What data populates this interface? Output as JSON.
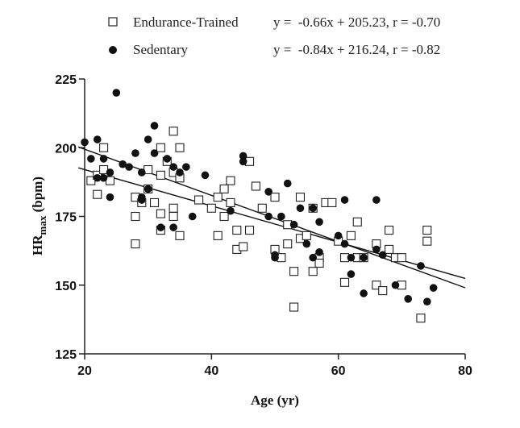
{
  "chart_data": {
    "type": "scatter",
    "xlabel": "Age (yr)",
    "ylabel_main": "HR",
    "ylabel_sub": "max",
    "ylabel_unit": " (bpm)",
    "xlim": [
      20,
      80
    ],
    "ylim": [
      125,
      225
    ],
    "xticks": [
      20,
      40,
      60,
      80
    ],
    "yticks": [
      125,
      150,
      175,
      200,
      225
    ],
    "grid": false,
    "legend_position": "top",
    "series": [
      {
        "name": "Endurance-Trained",
        "marker": "open-square",
        "equation": "y =  -0.66x + 205.23, r = -0.70",
        "fit": {
          "slope": -0.66,
          "intercept": 205.23,
          "x_range": [
            19,
            80
          ]
        },
        "points": [
          [
            21,
            188
          ],
          [
            22,
            183
          ],
          [
            22,
            190
          ],
          [
            23,
            192
          ],
          [
            23,
            200
          ],
          [
            24,
            188
          ],
          [
            28,
            175
          ],
          [
            28,
            165
          ],
          [
            28,
            182
          ],
          [
            29,
            180
          ],
          [
            30,
            192
          ],
          [
            30,
            185
          ],
          [
            31,
            180
          ],
          [
            32,
            200
          ],
          [
            32,
            190
          ],
          [
            32,
            176
          ],
          [
            32,
            170
          ],
          [
            33,
            195
          ],
          [
            34,
            206
          ],
          [
            34,
            191
          ],
          [
            34,
            178
          ],
          [
            34,
            175
          ],
          [
            35,
            200
          ],
          [
            35,
            189
          ],
          [
            35,
            168
          ],
          [
            38,
            181
          ],
          [
            40,
            178
          ],
          [
            41,
            182
          ],
          [
            41,
            168
          ],
          [
            42,
            185
          ],
          [
            42,
            175
          ],
          [
            43,
            188
          ],
          [
            43,
            180
          ],
          [
            44,
            170
          ],
          [
            44,
            163
          ],
          [
            45,
            164
          ],
          [
            46,
            195
          ],
          [
            46,
            170
          ],
          [
            47,
            186
          ],
          [
            48,
            178
          ],
          [
            50,
            182
          ],
          [
            50,
            163
          ],
          [
            51,
            160
          ],
          [
            52,
            172
          ],
          [
            52,
            165
          ],
          [
            53,
            155
          ],
          [
            53,
            142
          ],
          [
            54,
            182
          ],
          [
            54,
            167
          ],
          [
            55,
            168
          ],
          [
            56,
            178
          ],
          [
            56,
            155
          ],
          [
            57,
            160
          ],
          [
            57,
            158
          ],
          [
            58,
            180
          ],
          [
            59,
            180
          ],
          [
            60,
            166
          ],
          [
            61,
            160
          ],
          [
            61,
            151
          ],
          [
            62,
            168
          ],
          [
            63,
            173
          ],
          [
            63,
            160
          ],
          [
            64,
            160
          ],
          [
            66,
            165
          ],
          [
            66,
            150
          ],
          [
            67,
            148
          ],
          [
            68,
            170
          ],
          [
            68,
            163
          ],
          [
            69,
            160
          ],
          [
            70,
            160
          ],
          [
            70,
            150
          ],
          [
            73,
            138
          ],
          [
            74,
            170
          ],
          [
            74,
            166
          ]
        ]
      },
      {
        "name": "Sedentary",
        "marker": "filled-circle",
        "equation": "y =  -0.84x + 216.24, r = -0.82",
        "fit": {
          "slope": -0.84,
          "intercept": 216.24,
          "x_range": [
            19,
            80
          ]
        },
        "points": [
          [
            20,
            202
          ],
          [
            21,
            196
          ],
          [
            22,
            203
          ],
          [
            22,
            189
          ],
          [
            23,
            196
          ],
          [
            23,
            189
          ],
          [
            24,
            191
          ],
          [
            24,
            182
          ],
          [
            25,
            220
          ],
          [
            26,
            194
          ],
          [
            27,
            193
          ],
          [
            28,
            198
          ],
          [
            29,
            182
          ],
          [
            29,
            181
          ],
          [
            29,
            191
          ],
          [
            30,
            203
          ],
          [
            30,
            185
          ],
          [
            31,
            208
          ],
          [
            31,
            198
          ],
          [
            32,
            171
          ],
          [
            33,
            196
          ],
          [
            34,
            193
          ],
          [
            34,
            171
          ],
          [
            35,
            191
          ],
          [
            36,
            193
          ],
          [
            37,
            175
          ],
          [
            39,
            190
          ],
          [
            43,
            177
          ],
          [
            45,
            197
          ],
          [
            45,
            195
          ],
          [
            49,
            184
          ],
          [
            49,
            175
          ],
          [
            50,
            160
          ],
          [
            50,
            161
          ],
          [
            51,
            175
          ],
          [
            52,
            187
          ],
          [
            53,
            172
          ],
          [
            54,
            178
          ],
          [
            55,
            165
          ],
          [
            56,
            178
          ],
          [
            56,
            160
          ],
          [
            57,
            173
          ],
          [
            57,
            162
          ],
          [
            60,
            168
          ],
          [
            61,
            181
          ],
          [
            61,
            165
          ],
          [
            62,
            154
          ],
          [
            62,
            160
          ],
          [
            64,
            147
          ],
          [
            64,
            160
          ],
          [
            66,
            181
          ],
          [
            66,
            163
          ],
          [
            67,
            161
          ],
          [
            69,
            150
          ],
          [
            71,
            145
          ],
          [
            73,
            157
          ],
          [
            74,
            144
          ],
          [
            75,
            149
          ]
        ]
      }
    ]
  }
}
